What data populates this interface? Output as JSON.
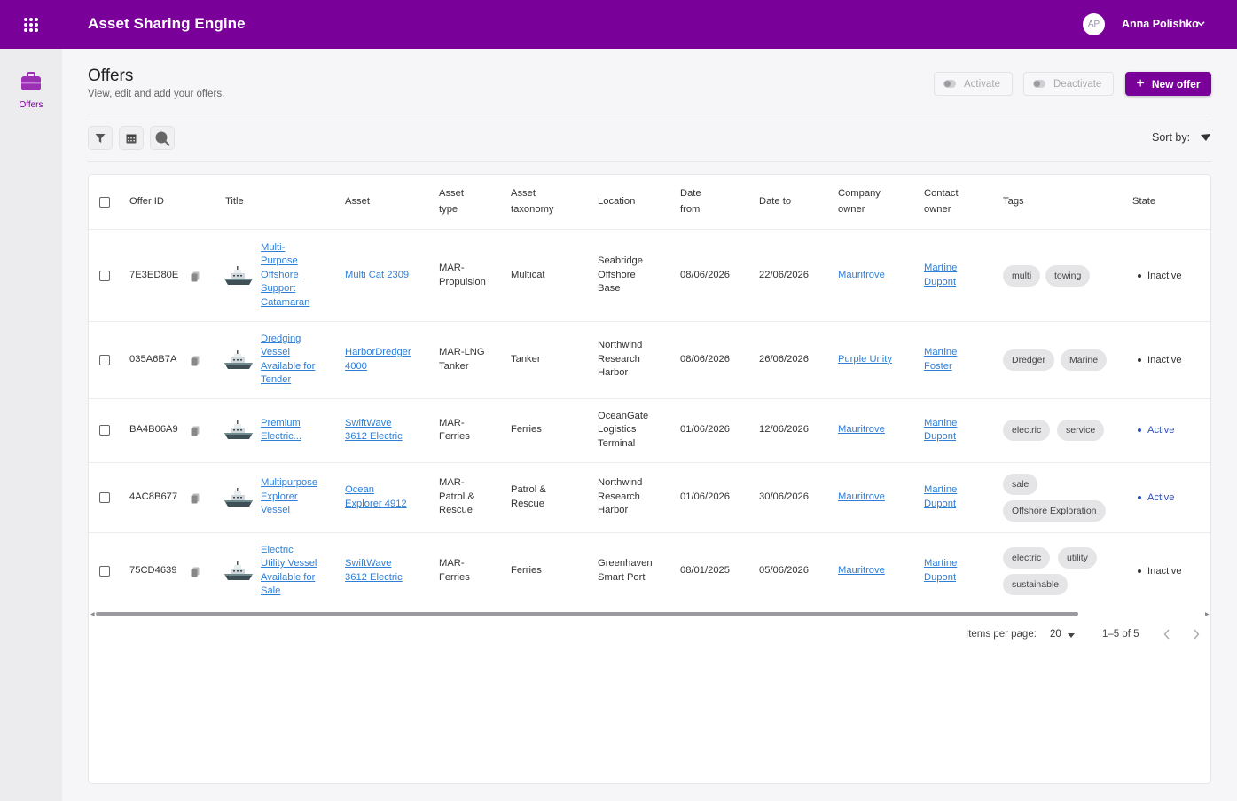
{
  "app": {
    "title": "Asset Sharing Engine"
  },
  "user": {
    "initials": "AP",
    "name": "Anna Polishko"
  },
  "sidebar": {
    "items": [
      {
        "label": "Offers"
      }
    ]
  },
  "page": {
    "title": "Offers",
    "subtitle": "View, edit and add your offers."
  },
  "actions": {
    "activate": "Activate",
    "deactivate": "Deactivate",
    "new_offer": "New offer"
  },
  "toolbar": {
    "sort_label": "Sort by:"
  },
  "table": {
    "headers": {
      "offer_id": "Offer ID",
      "title": "Title",
      "asset": "Asset",
      "asset_type_1": "Asset",
      "asset_type_2": "type",
      "asset_tax_1": "Asset",
      "asset_tax_2": "taxonomy",
      "location": "Location",
      "date_from_1": "Date",
      "date_from_2": "from",
      "date_to": "Date to",
      "company_1": "Company",
      "company_2": "owner",
      "contact_1": "Contact",
      "contact_2": "owner",
      "tags": "Tags",
      "state": "State"
    },
    "rows": [
      {
        "id": "7E3ED80E",
        "title": [
          "Multi-",
          "Purpose",
          "Offshore",
          "Support",
          "Catamaran"
        ],
        "asset": [
          "Multi Cat 2309"
        ],
        "asset_type": [
          "MAR-",
          "Propulsion"
        ],
        "taxonomy": [
          "Multicat"
        ],
        "location": [
          "Seabridge",
          "Offshore",
          "Base"
        ],
        "date_from": "08/06/2026",
        "date_to": "22/06/2026",
        "company": "Mauritrove",
        "contact": [
          "Martine",
          "Dupont"
        ],
        "tags": [
          "multi",
          "towing"
        ],
        "state": "Inactive"
      },
      {
        "id": "035A6B7A",
        "title": [
          "Dredging",
          "Vessel",
          "Available for",
          "Tender"
        ],
        "asset": [
          "HarborDredger",
          "4000"
        ],
        "asset_type": [
          "MAR-LNG",
          "Tanker"
        ],
        "taxonomy": [
          "Tanker"
        ],
        "location": [
          "Northwind",
          "Research",
          "Harbor"
        ],
        "date_from": "08/06/2026",
        "date_to": "26/06/2026",
        "company": "Purple Unity",
        "contact": [
          "Martine",
          "Foster"
        ],
        "tags": [
          "Dredger",
          "Marine"
        ],
        "state": "Inactive"
      },
      {
        "id": "BA4B06A9",
        "title": [
          "Premium",
          "Electric..."
        ],
        "asset": [
          "SwiftWave",
          "3612 Electric"
        ],
        "asset_type": [
          "MAR-",
          "Ferries"
        ],
        "taxonomy": [
          "Ferries"
        ],
        "location": [
          "OceanGate",
          "Logistics",
          "Terminal"
        ],
        "date_from": "01/06/2026",
        "date_to": "12/06/2026",
        "company": "Mauritrove",
        "contact": [
          "Martine",
          "Dupont"
        ],
        "tags": [
          "electric",
          "service"
        ],
        "state": "Active"
      },
      {
        "id": "4AC8B677",
        "title": [
          "Multipurpose",
          "Explorer",
          "Vessel"
        ],
        "asset": [
          "Ocean",
          "Explorer 4912"
        ],
        "asset_type": [
          "MAR-",
          "Patrol &",
          "Rescue"
        ],
        "taxonomy": [
          "Patrol &",
          "Rescue"
        ],
        "location": [
          "Northwind",
          "Research",
          "Harbor"
        ],
        "date_from": "01/06/2026",
        "date_to": "30/06/2026",
        "company": "Mauritrove",
        "contact": [
          "Martine",
          "Dupont"
        ],
        "tags": [
          "sale",
          "Offshore Exploration"
        ],
        "state": "Active"
      },
      {
        "id": "75CD4639",
        "title": [
          "Electric",
          "Utility Vessel",
          "Available for",
          "Sale"
        ],
        "asset": [
          "SwiftWave",
          "3612 Electric"
        ],
        "asset_type": [
          "MAR-",
          "Ferries"
        ],
        "taxonomy": [
          "Ferries"
        ],
        "location": [
          "Greenhaven",
          "Smart Port"
        ],
        "date_from": "08/01/2025",
        "date_to": "05/06/2026",
        "company": "Mauritrove",
        "contact": [
          "Martine",
          "Dupont"
        ],
        "tags": [
          "electric",
          "utility",
          "sustainable"
        ],
        "state": "Inactive"
      }
    ]
  },
  "pagination": {
    "items_label": "Items per page:",
    "items_value": "20",
    "range": "1–5 of 5"
  },
  "colors": {
    "brand": "#790099",
    "link": "#2f7fd6",
    "active_state": "#2f52b8"
  }
}
